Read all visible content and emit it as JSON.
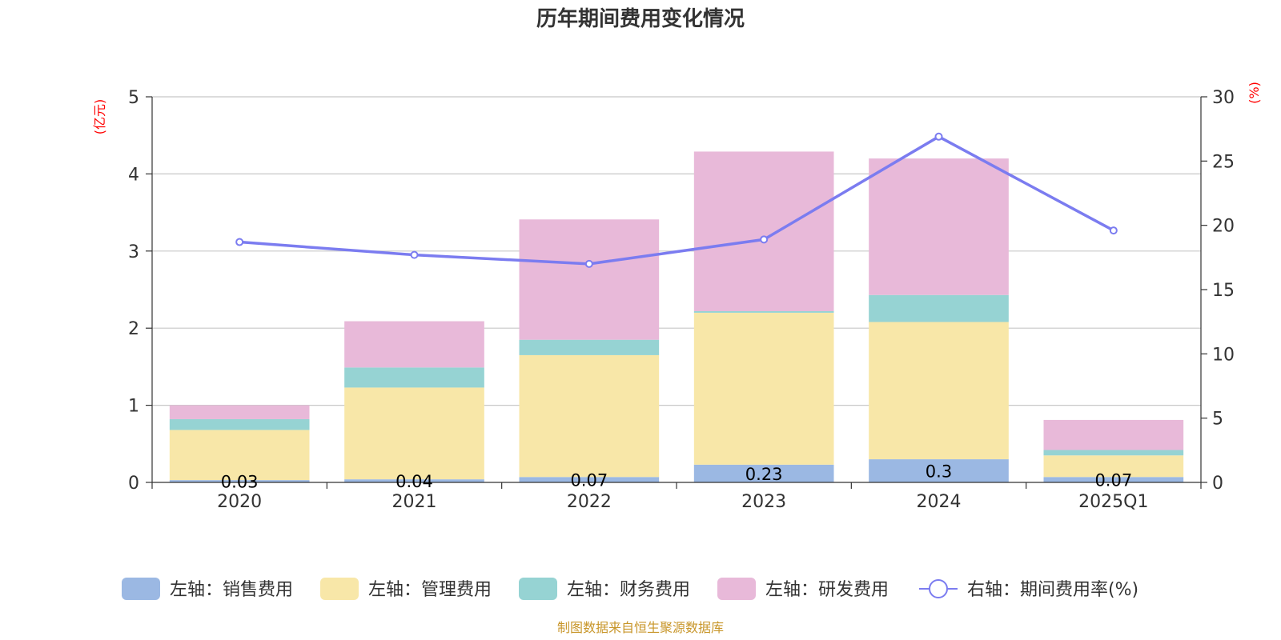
{
  "chart_data": {
    "type": "bar",
    "title": "历年期间费用变化情况",
    "categories": [
      "2020",
      "2021",
      "2022",
      "2023",
      "2024",
      "2025Q1"
    ],
    "y_left": {
      "unit": "(亿元)",
      "lim": [
        0,
        5
      ],
      "ticks": [
        "0",
        "1",
        "2",
        "3",
        "4",
        "5"
      ]
    },
    "y_right": {
      "unit": "(%)",
      "lim": [
        0,
        30
      ],
      "ticks": [
        "0",
        "5",
        "10",
        "15",
        "20",
        "25",
        "30"
      ]
    },
    "series": [
      {
        "name": "左轴：销售费用",
        "type": "bar",
        "axis": "left",
        "color": "#9bb8e3",
        "values": [
          0.03,
          0.04,
          0.07,
          0.23,
          0.3,
          0.07
        ],
        "labels": [
          "0.03",
          "0.04",
          "0.07",
          "0.23",
          "0.3",
          "0.07"
        ]
      },
      {
        "name": "左轴：管理费用",
        "type": "bar",
        "axis": "left",
        "color": "#f8e7a8",
        "values": [
          0.65,
          1.19,
          1.58,
          1.97,
          1.78,
          0.28
        ]
      },
      {
        "name": "左轴：财务费用",
        "type": "bar",
        "axis": "left",
        "color": "#96d3d3",
        "values": [
          0.14,
          0.26,
          0.2,
          0.02,
          0.35,
          0.07
        ]
      },
      {
        "name": "左轴：研发费用",
        "type": "bar",
        "axis": "left",
        "color": "#e8b9d9",
        "values": [
          0.18,
          0.6,
          1.56,
          2.07,
          1.77,
          0.39
        ]
      },
      {
        "name": "右轴：期间费用率(%)",
        "type": "line",
        "axis": "right",
        "color": "#7b7cf0",
        "values": [
          18.7,
          17.7,
          17.0,
          18.9,
          26.9,
          19.6
        ]
      }
    ],
    "grid": true,
    "legend_position": "bottom"
  },
  "source_note": "制图数据来自恒生聚源数据库"
}
